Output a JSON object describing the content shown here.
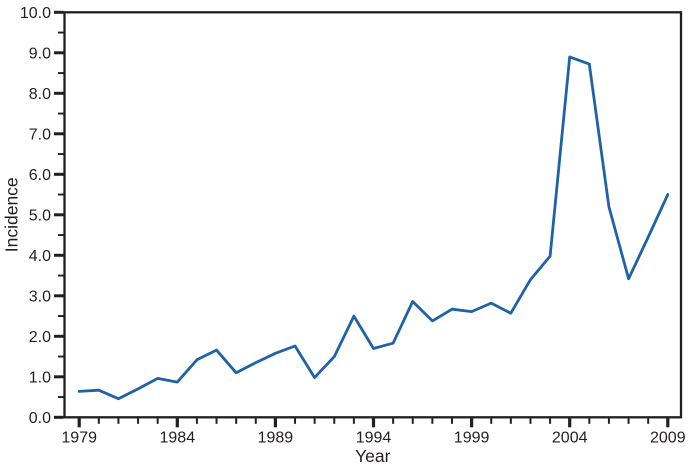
{
  "page": {
    "background": "#ffffff"
  },
  "chart_data": {
    "type": "line",
    "title": "",
    "xlabel": "Year",
    "ylabel": "Incidence",
    "x_range": [
      1979,
      2009
    ],
    "ylim": [
      0.0,
      10.0
    ],
    "grid": false,
    "legend": "none",
    "axis_color": "#231f20",
    "line_color": "#1f62a6",
    "y_tick_step": 1.0,
    "y_minor_tick_step": 0.5,
    "y_tick_labels": [
      "0.0",
      "1.0",
      "2.0",
      "3.0",
      "4.0",
      "5.0",
      "6.0",
      "7.0",
      "8.0",
      "9.0",
      "10.0"
    ],
    "x_tick_step": 1,
    "x_label_every": 5,
    "x_tick_labels": [
      "1979",
      "1984",
      "1989",
      "1994",
      "1999",
      "2004",
      "2009"
    ],
    "series": [
      {
        "name": "Incidence",
        "x": [
          1979,
          1980,
          1981,
          1982,
          1983,
          1984,
          1985,
          1986,
          1987,
          1988,
          1989,
          1990,
          1991,
          1992,
          1993,
          1994,
          1995,
          1996,
          1997,
          1998,
          1999,
          2000,
          2001,
          2002,
          2003,
          2004,
          2005,
          2006,
          2007,
          2008,
          2009
        ],
        "values": [
          0.64,
          0.67,
          0.46,
          0.7,
          0.96,
          0.87,
          1.42,
          1.66,
          1.1,
          1.35,
          1.58,
          1.76,
          0.98,
          1.5,
          2.5,
          1.7,
          1.83,
          2.86,
          2.38,
          2.67,
          2.61,
          2.82,
          2.57,
          3.4,
          3.98,
          8.9,
          8.72,
          5.2,
          3.42,
          4.45,
          5.5
        ]
      }
    ]
  }
}
